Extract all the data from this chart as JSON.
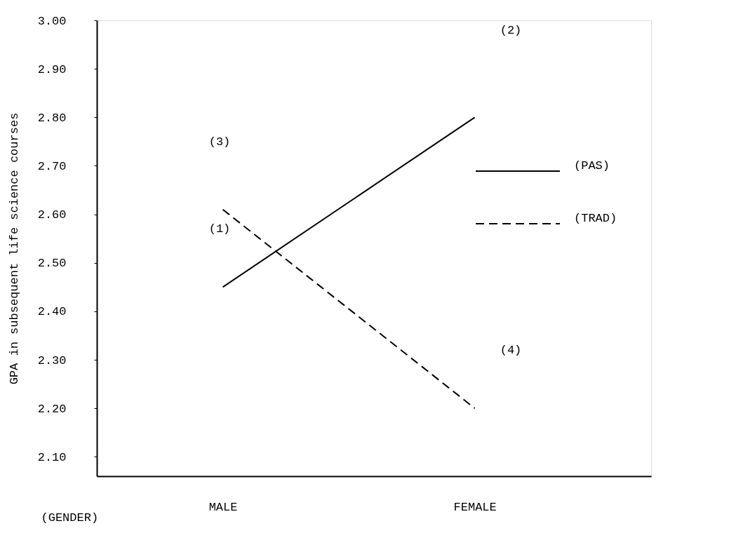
{
  "chart_data": {
    "type": "line",
    "xlabel": "(GENDER)",
    "ylabel": "GPA in subsequent life science courses",
    "categories": [
      "MALE",
      "FEMALE"
    ],
    "series": [
      {
        "name": "(PAS)",
        "color": "#000000",
        "line_style": "solid",
        "values": [
          2.45,
          2.8
        ]
      },
      {
        "name": "(TRAD)",
        "color": "#000000",
        "line_style": "dashed",
        "values": [
          2.61,
          2.2
        ]
      }
    ],
    "ylim": [
      2.06,
      3.0
    ],
    "yticks": [
      {
        "value": 2.1,
        "label": "2.10"
      },
      {
        "value": 2.2,
        "label": "2.20"
      },
      {
        "value": 2.3,
        "label": "2.30"
      },
      {
        "value": 2.4,
        "label": "2.40"
      },
      {
        "value": 2.5,
        "label": "2.50"
      },
      {
        "value": 2.6,
        "label": "2.60"
      },
      {
        "value": 2.7,
        "label": "2.70"
      },
      {
        "value": 2.8,
        "label": "2.80"
      },
      {
        "value": 2.9,
        "label": "2.90"
      },
      {
        "value": 3.0,
        "label": "3.00"
      }
    ],
    "annotations": [
      "(3)",
      "(1)",
      "(2)",
      "(4)"
    ],
    "legend": "right",
    "grid": false,
    "marker": "none"
  }
}
